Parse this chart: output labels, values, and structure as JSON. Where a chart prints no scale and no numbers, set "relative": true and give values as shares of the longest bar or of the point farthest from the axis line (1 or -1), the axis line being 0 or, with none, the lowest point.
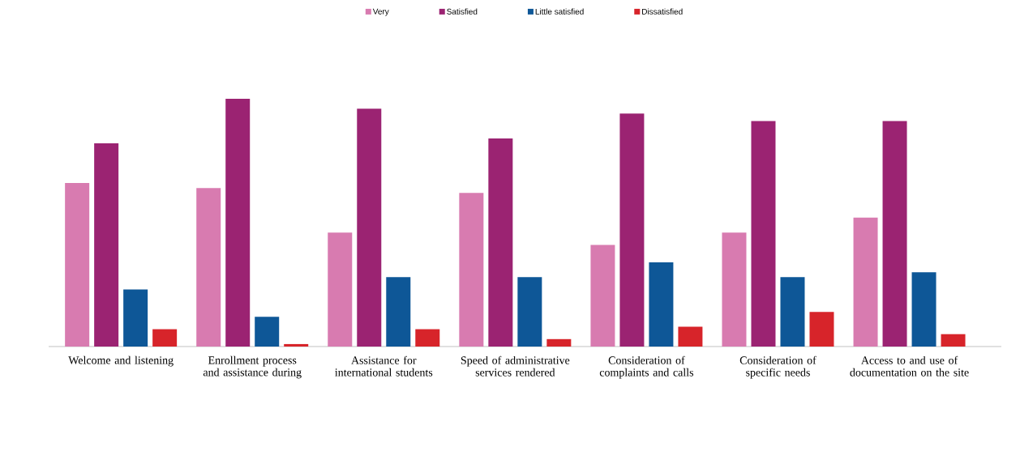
{
  "chart_data": {
    "type": "bar",
    "relative": true,
    "legend": "top",
    "categories": [
      "Welcome and listening",
      "Enrollment process and assistance during",
      "Assistance for international students",
      "Speed of administrative services rendered",
      "Consideration of complaints and calls",
      "Consideration of specific needs",
      "Access to and use of documentation on the site"
    ],
    "series": [
      {
        "name": "Very",
        "color": "#d87bb0",
        "values": [
          0.66,
          0.64,
          0.46,
          0.62,
          0.41,
          0.46,
          0.52
        ]
      },
      {
        "name": "Satisfied",
        "color": "#9b2372",
        "values": [
          0.82,
          1,
          0.96,
          0.84,
          0.94,
          0.91,
          0.91
        ]
      },
      {
        "name": "Little satisfied",
        "color": "#0e5797",
        "values": [
          0.23,
          0.12,
          0.28,
          0.28,
          0.34,
          0.28,
          0.3
        ]
      },
      {
        "name": "Dissatisfied",
        "color": "#d7242a",
        "values": [
          0.07,
          0.01,
          0.07,
          0.03,
          0.08,
          0.14,
          0.05
        ]
      }
    ]
  }
}
